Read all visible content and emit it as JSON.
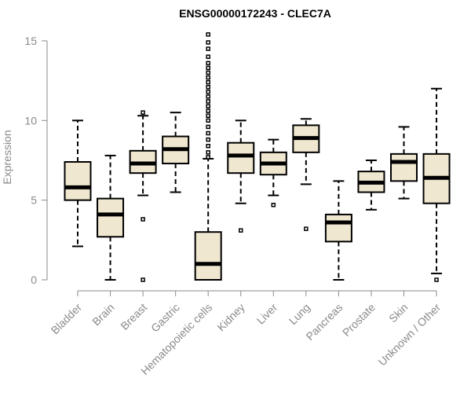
{
  "chart_data": {
    "type": "box",
    "title": "ENSG00000172243 - CLEC7A",
    "xlabel": "",
    "ylabel": "Expression",
    "ylim": [
      0,
      15.5
    ],
    "yticks": [
      0,
      5,
      10,
      15
    ],
    "grid": false,
    "box_fill": "#efe7cf",
    "axis_color": "#8a8a8a",
    "categories": [
      "Bladder",
      "Brain",
      "Breast",
      "Gastric",
      "Hematopoietic cells",
      "Kidney",
      "Liver",
      "Lung",
      "Pancreas",
      "Prostate",
      "Skin",
      "Unknown / Other"
    ],
    "boxes": [
      {
        "whisker_low": 2.1,
        "q1": 5.0,
        "median": 5.8,
        "q3": 7.4,
        "whisker_high": 10.0,
        "outliers": []
      },
      {
        "whisker_low": 0.0,
        "q1": 2.7,
        "median": 4.1,
        "q3": 5.1,
        "whisker_high": 7.8,
        "outliers": []
      },
      {
        "whisker_low": 5.3,
        "q1": 6.7,
        "median": 7.3,
        "q3": 8.1,
        "whisker_high": 10.3,
        "outliers": [
          3.8,
          0.0,
          10.5
        ]
      },
      {
        "whisker_low": 5.5,
        "q1": 7.3,
        "median": 8.2,
        "q3": 9.0,
        "whisker_high": 10.5,
        "outliers": []
      },
      {
        "whisker_low": 0.0,
        "q1": 0.0,
        "median": 1.0,
        "q3": 3.0,
        "whisker_high": 7.6,
        "outliers": [
          7.7,
          8.0,
          8.4,
          8.8,
          9.2,
          9.6,
          10.0,
          10.3,
          10.6,
          10.9,
          11.2,
          11.5,
          11.8,
          12.1,
          12.4,
          12.7,
          13.0,
          13.3,
          13.6,
          14.0,
          14.5,
          14.9,
          15.4
        ]
      },
      {
        "whisker_low": 4.8,
        "q1": 6.7,
        "median": 7.8,
        "q3": 8.6,
        "whisker_high": 10.0,
        "outliers": [
          3.1
        ]
      },
      {
        "whisker_low": 5.3,
        "q1": 6.6,
        "median": 7.3,
        "q3": 8.0,
        "whisker_high": 8.8,
        "outliers": [
          4.7
        ]
      },
      {
        "whisker_low": 6.0,
        "q1": 8.0,
        "median": 8.9,
        "q3": 9.7,
        "whisker_high": 10.1,
        "outliers": [
          3.2
        ]
      },
      {
        "whisker_low": 0.0,
        "q1": 2.4,
        "median": 3.6,
        "q3": 4.1,
        "whisker_high": 6.2,
        "outliers": []
      },
      {
        "whisker_low": 4.4,
        "q1": 5.5,
        "median": 6.1,
        "q3": 6.8,
        "whisker_high": 7.5,
        "outliers": []
      },
      {
        "whisker_low": 5.1,
        "q1": 6.2,
        "median": 7.4,
        "q3": 7.9,
        "whisker_high": 9.6,
        "outliers": []
      },
      {
        "whisker_low": 0.4,
        "q1": 4.8,
        "median": 6.4,
        "q3": 7.9,
        "whisker_high": 12.0,
        "outliers": [
          0.0
        ]
      }
    ]
  }
}
